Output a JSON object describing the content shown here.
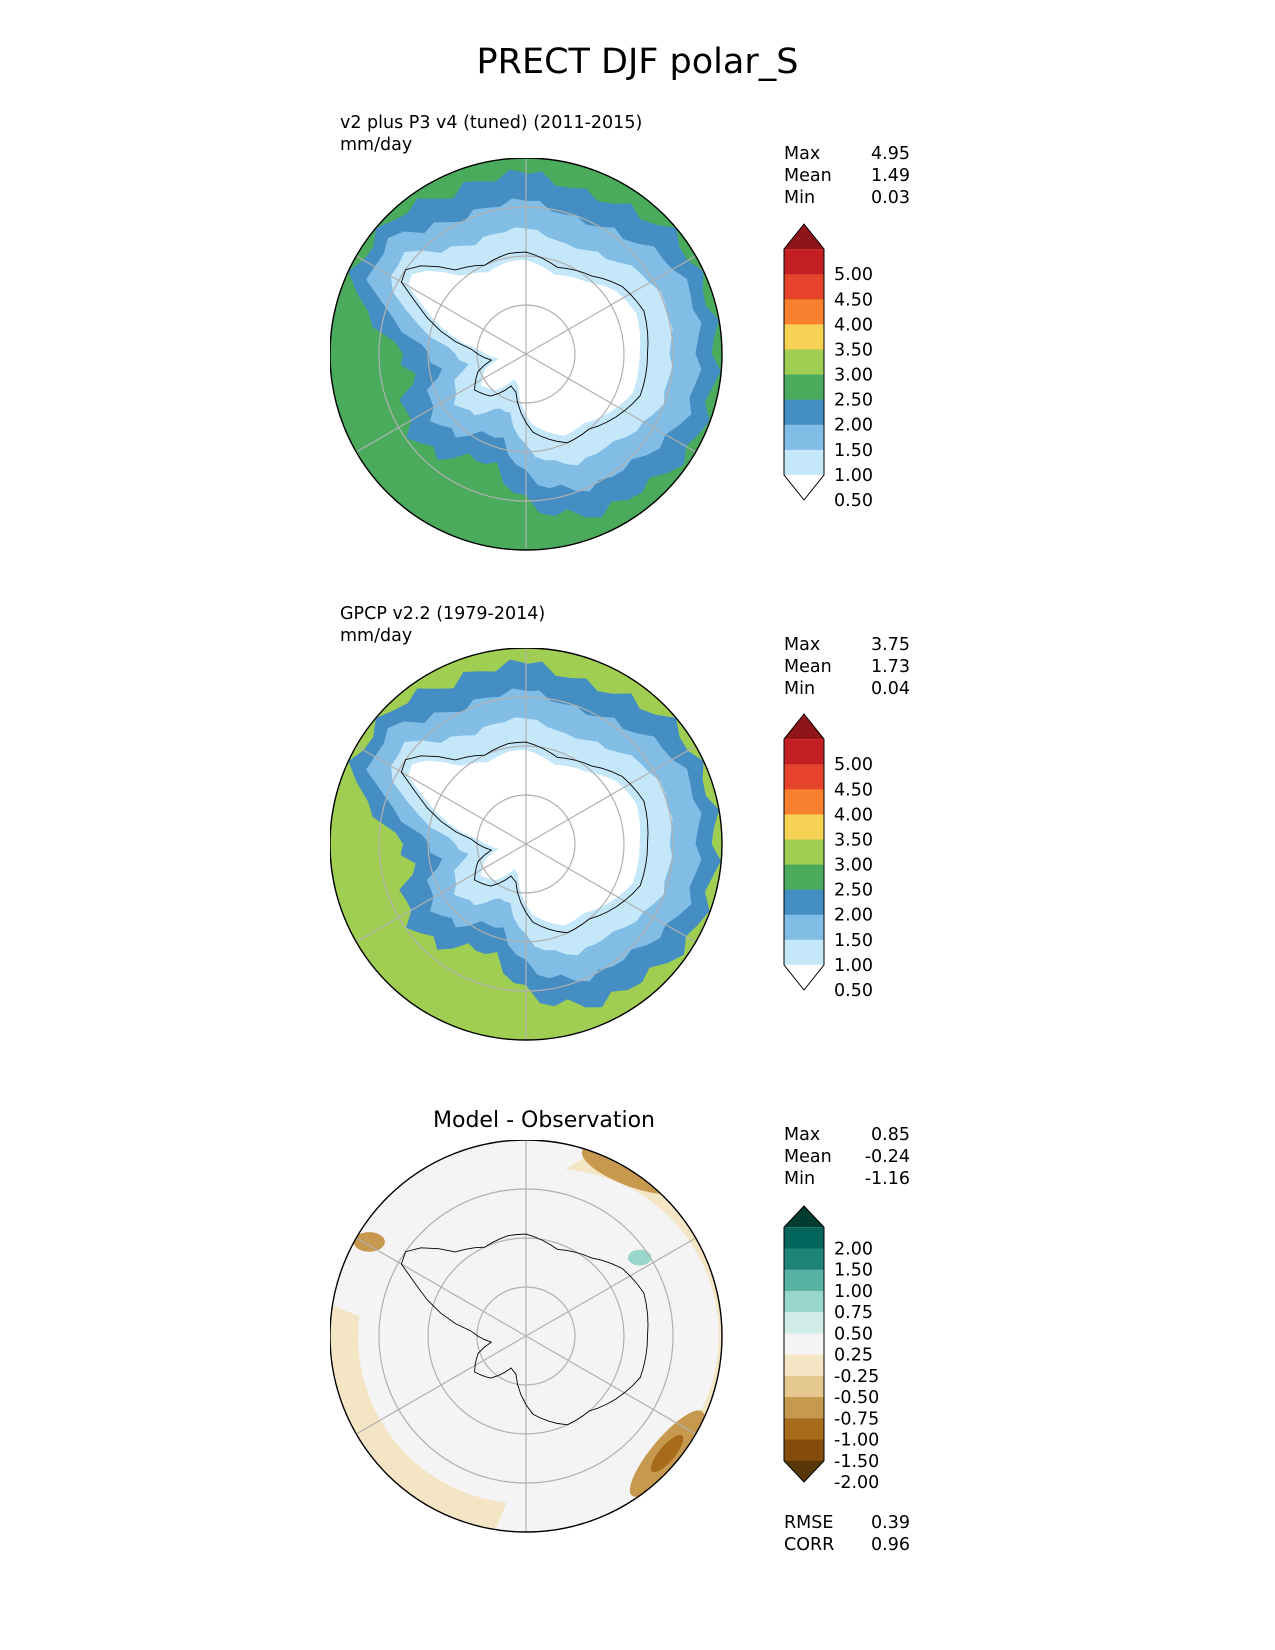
{
  "figure_title": "PRECT DJF polar_S",
  "colors": {
    "precip": [
      "#ffffff",
      "#c4e7f9",
      "#82bde6",
      "#448ec3",
      "#4aab5c",
      "#a0ce52",
      "#f7d255",
      "#f7812e",
      "#e5432b",
      "#c31e24",
      "#8f1519"
    ],
    "diff": [
      "#583708",
      "#844c0a",
      "#a86b1c",
      "#c7994f",
      "#e4c88d",
      "#f4e5c4",
      "#f4f4f4",
      "#d0ede8",
      "#99d6cc",
      "#58b2a4",
      "#208378",
      "#02655b",
      "#003c30"
    ]
  },
  "chart_data": [
    {
      "type": "heatmap",
      "projection": "south-polar-stereographic",
      "title": "v2 plus P3 v4 (tuned) (2011-2015)",
      "units": "mm/day",
      "stats": [
        {
          "label": "Max",
          "value": "4.95"
        },
        {
          "label": "Mean",
          "value": "1.49"
        },
        {
          "label": "Min",
          "value": "0.03"
        }
      ],
      "colorbar": {
        "extend": "both",
        "tick_labels": [
          "5.00",
          "4.50",
          "4.00",
          "3.50",
          "3.00",
          "2.50",
          "2.00",
          "1.50",
          "1.00",
          "0.50"
        ],
        "levels": [
          0.5,
          1.0,
          1.5,
          2.0,
          2.5,
          3.0,
          3.5,
          4.0,
          4.5,
          5.0
        ]
      },
      "field": {
        "pole_value": 0.2,
        "coast_value": 0.8,
        "ice_edge_value": 1.3,
        "ocean_belt_value": 1.8,
        "outer_value": 2.4
      }
    },
    {
      "type": "heatmap",
      "projection": "south-polar-stereographic",
      "title": "GPCP v2.2 (1979-2014)",
      "units": "mm/day",
      "stats": [
        {
          "label": "Max",
          "value": "3.75"
        },
        {
          "label": "Mean",
          "value": "1.73"
        },
        {
          "label": "Min",
          "value": "0.04"
        }
      ],
      "colorbar": {
        "extend": "both",
        "tick_labels": [
          "5.00",
          "4.50",
          "4.00",
          "3.50",
          "3.00",
          "2.50",
          "2.00",
          "1.50",
          "1.00",
          "0.50"
        ],
        "levels": [
          0.5,
          1.0,
          1.5,
          2.0,
          2.5,
          3.0,
          3.5,
          4.0,
          4.5,
          5.0
        ]
      },
      "field": {
        "pole_value": 0.2,
        "coast_value": 0.8,
        "ice_edge_value": 1.3,
        "ocean_belt_value": 1.9,
        "outer_value": 2.8
      }
    },
    {
      "type": "heatmap",
      "projection": "south-polar-stereographic",
      "title": "Model - Observation",
      "stats": [
        {
          "label": "Max",
          "value": "0.85"
        },
        {
          "label": "Mean",
          "value": "-0.24"
        },
        {
          "label": "Min",
          "value": "-1.16"
        }
      ],
      "extra_stats": [
        {
          "label": "RMSE",
          "value": "0.39"
        },
        {
          "label": "CORR",
          "value": "0.96"
        }
      ],
      "colorbar": {
        "extend": "both",
        "tick_labels": [
          "2.00",
          "1.50",
          "1.00",
          "0.75",
          "0.50",
          "0.25",
          "-0.25",
          "-0.50",
          "-0.75",
          "-1.00",
          "-1.50",
          "-2.00"
        ],
        "levels": [
          -2.0,
          -1.5,
          -1.0,
          -0.75,
          -0.5,
          -0.25,
          0.25,
          0.5,
          0.75,
          1.0,
          1.5,
          2.0
        ]
      }
    }
  ]
}
